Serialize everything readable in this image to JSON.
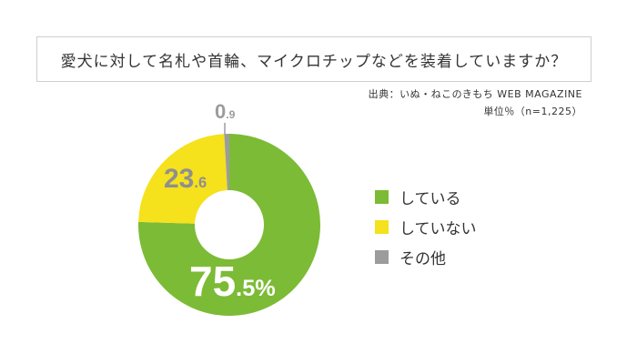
{
  "title": "愛犬に対して名札や首輪、マイクロチップなどを装着していますか？",
  "source": "出典：いぬ・ねこのきもち WEB MAGAZINE",
  "unit": "単位％（n=1,225）",
  "chart_data": {
    "type": "pie",
    "donut": true,
    "title": "愛犬に対して名札や首輪、マイクロチップなどを装着していますか？",
    "unit": "%",
    "n": 1225,
    "categories": [
      "している",
      "していない",
      "その他"
    ],
    "values": [
      75.5,
      23.6,
      0.9
    ],
    "colors": [
      "#7cbb35",
      "#f5e11c",
      "#9c9c9c"
    ],
    "data_labels": [
      {
        "int": "75",
        "dec": ".5%"
      },
      {
        "int": "23",
        "dec": ".6"
      },
      {
        "int": "0",
        "dec": ".9"
      }
    ],
    "legend_position": "right"
  }
}
